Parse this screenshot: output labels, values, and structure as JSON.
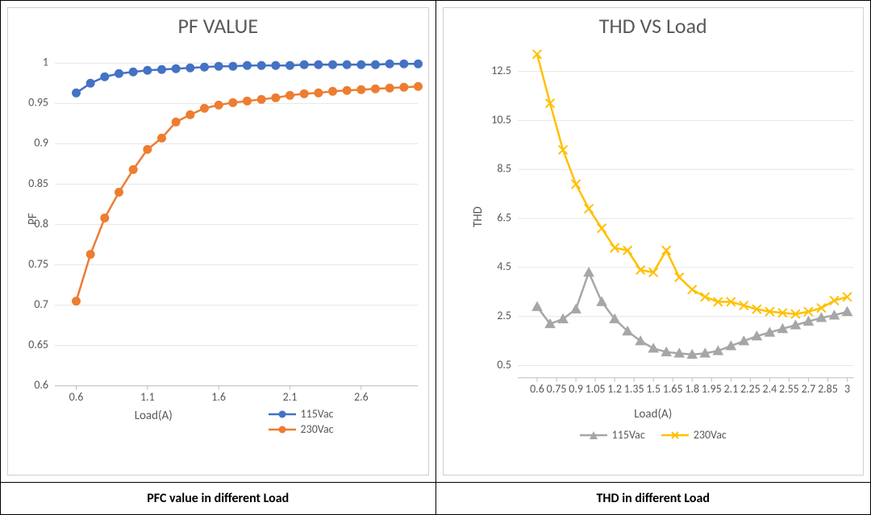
{
  "left": {
    "caption": "PFC value in different Load",
    "chart": {
      "type": "line",
      "title": "PF VALUE",
      "title_fontsize": 26,
      "title_color": "#595959",
      "xlabel": "Load(A)",
      "ylabel": "PF",
      "label_fontsize": 15,
      "label_color": "#595959",
      "xlim": [
        0.45,
        3.0
      ],
      "ylim": [
        0.6,
        1.02
      ],
      "xticks": [
        0.6,
        1.1,
        1.6,
        2.1,
        2.6
      ],
      "yticks": [
        0.6,
        0.65,
        0.7,
        0.75,
        0.8,
        0.85,
        0.9,
        0.95,
        1.0
      ],
      "grid_color": "#e6e6e6",
      "background_color": "#ffffff",
      "marker": "circle",
      "marker_size": 5,
      "line_width": 2.5,
      "x": [
        0.6,
        0.7,
        0.8,
        0.9,
        1.0,
        1.1,
        1.2,
        1.3,
        1.4,
        1.5,
        1.6,
        1.7,
        1.8,
        1.9,
        2.0,
        2.1,
        2.2,
        2.3,
        2.4,
        2.5,
        2.6,
        2.7,
        2.8,
        2.9,
        3.0
      ],
      "series": [
        {
          "name": "115Vac",
          "color": "#4472c4",
          "y": [
            0.963,
            0.975,
            0.983,
            0.987,
            0.989,
            0.991,
            0.992,
            0.993,
            0.994,
            0.995,
            0.996,
            0.996,
            0.997,
            0.997,
            0.997,
            0.997,
            0.998,
            0.998,
            0.998,
            0.998,
            0.998,
            0.998,
            0.999,
            0.999,
            0.999
          ]
        },
        {
          "name": "230Vac",
          "color": "#ed7d31",
          "y": [
            0.705,
            0.763,
            0.808,
            0.84,
            0.868,
            0.893,
            0.907,
            0.927,
            0.936,
            0.944,
            0.948,
            0.951,
            0.953,
            0.955,
            0.957,
            0.96,
            0.962,
            0.963,
            0.965,
            0.966,
            0.967,
            0.968,
            0.969,
            0.97,
            0.971
          ]
        }
      ],
      "legend_position": "bottom-right"
    }
  },
  "right": {
    "caption": "THD in different Load",
    "chart": {
      "type": "line",
      "title": "THD VS Load",
      "title_fontsize": 26,
      "title_color": "#595959",
      "xlabel": "Load(A)",
      "ylabel": "THD",
      "label_fontsize": 15,
      "label_color": "#595959",
      "xlim": [
        0.45,
        3.05
      ],
      "ylim": [
        0.0,
        13.5
      ],
      "xticks": [
        0.6,
        0.75,
        0.9,
        1.05,
        1.2,
        1.35,
        1.5,
        1.65,
        1.8,
        1.95,
        2.1,
        2.25,
        2.4,
        2.55,
        2.7,
        2.85,
        3.0
      ],
      "xtick_labels": [
        "0.6",
        "0.75",
        "0.9",
        "1.05",
        "1.2",
        "1.35",
        "1.5",
        "1.65",
        "1.8",
        "1.95",
        "2.1",
        "2.25",
        "2.4",
        "2.55",
        "2.7",
        "2.85",
        "3"
      ],
      "yticks": [
        0.5,
        2.5,
        4.5,
        6.5,
        8.5,
        10.5,
        12.5
      ],
      "grid_color": "#e6e6e6",
      "background_color": "#ffffff",
      "line_width": 2.5,
      "x": [
        0.6,
        0.7,
        0.8,
        0.9,
        1.0,
        1.1,
        1.2,
        1.3,
        1.4,
        1.5,
        1.6,
        1.7,
        1.8,
        1.9,
        2.0,
        2.1,
        2.2,
        2.3,
        2.4,
        2.5,
        2.6,
        2.7,
        2.8,
        2.9,
        3.0
      ],
      "series": [
        {
          "name": "115Vac",
          "color": "#a6a6a6",
          "marker": "triangle",
          "marker_size": 6,
          "y": [
            2.9,
            2.2,
            2.4,
            2.8,
            4.3,
            3.1,
            2.4,
            1.9,
            1.5,
            1.2,
            1.05,
            1.0,
            0.95,
            1.0,
            1.1,
            1.3,
            1.5,
            1.7,
            1.85,
            2.0,
            2.15,
            2.3,
            2.45,
            2.55,
            2.7
          ]
        },
        {
          "name": "230Vac",
          "color": "#ffc000",
          "marker": "x",
          "marker_size": 6,
          "y": [
            13.2,
            11.2,
            9.3,
            7.9,
            6.9,
            6.1,
            5.3,
            5.2,
            4.4,
            4.3,
            5.2,
            4.1,
            3.6,
            3.3,
            3.1,
            3.1,
            2.95,
            2.8,
            2.7,
            2.65,
            2.6,
            2.7,
            2.85,
            3.15,
            3.3
          ]
        }
      ],
      "legend_position": "bottom-center"
    }
  }
}
